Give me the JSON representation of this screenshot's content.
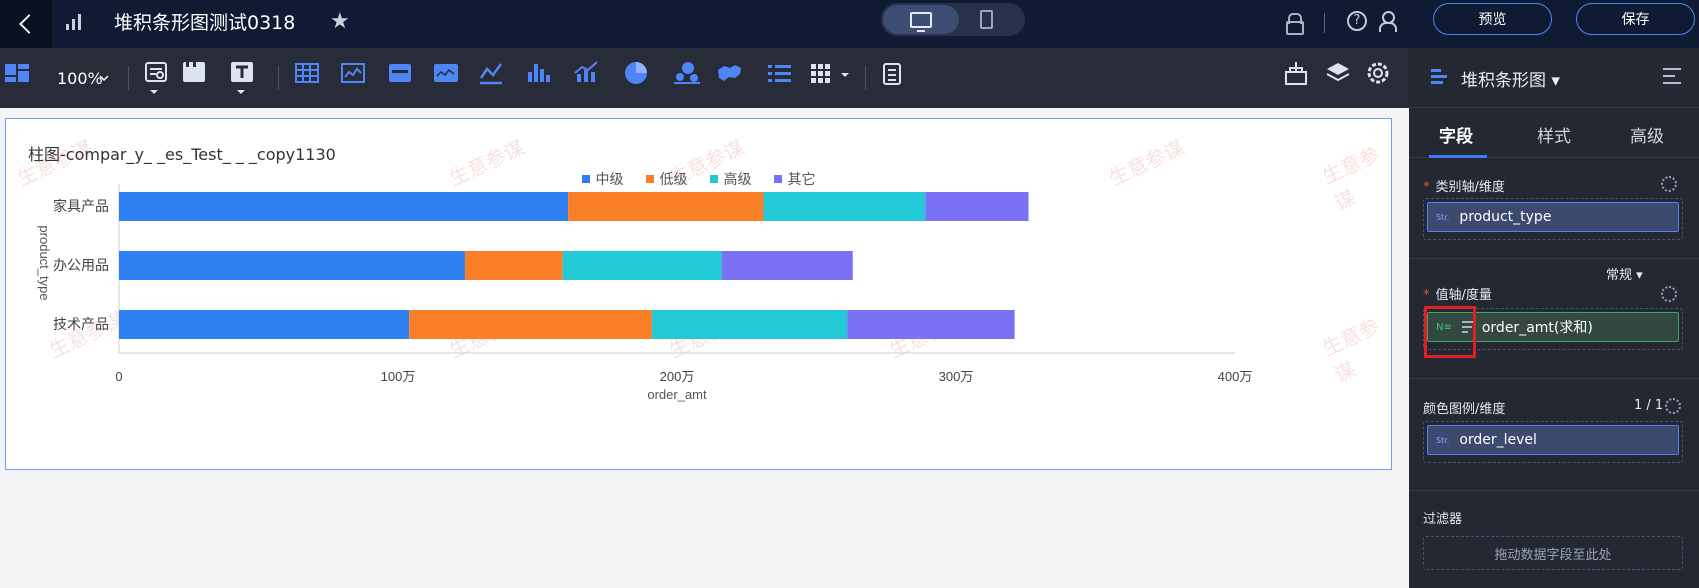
{
  "header": {
    "title": "堆积条形图测试0318",
    "preview_label": "预览",
    "save_label": "保存"
  },
  "toolbar": {
    "zoom": "100%",
    "icons": [
      "dashboard-icon",
      "zoom-icon",
      "query-icon",
      "container-icon",
      "text-icon",
      "table-icon",
      "line-card-icon",
      "card-icon",
      "kpi-icon",
      "line-chart-icon",
      "bar-chart-icon",
      "combo-chart-icon",
      "pie-chart-icon",
      "bubble-icon",
      "map-icon",
      "list-icon",
      "more-grid-icon",
      "report-icon",
      "brush-icon",
      "layers-icon",
      "settings-icon"
    ]
  },
  "chart": {
    "title": "柱图-compar_y_ _es_Test_ _ _copy1130",
    "watermark": "生意参谋"
  },
  "chart_data": {
    "type": "bar",
    "orientation": "horizontal",
    "stacked": true,
    "categories": [
      "家具产品",
      "办公用品",
      "技术产品"
    ],
    "series": [
      {
        "name": "中级",
        "color": "#2f80f3",
        "values": [
          161,
          124,
          104
        ]
      },
      {
        "name": "低级",
        "color": "#fb7f26",
        "values": [
          70,
          35,
          87
        ]
      },
      {
        "name": "高级",
        "color": "#23cad5",
        "values": [
          58,
          57,
          70
        ]
      },
      {
        "name": "其它",
        "color": "#7b71f5",
        "values": [
          37,
          47,
          60
        ]
      }
    ],
    "xlim": [
      0,
      400
    ],
    "x_ticks": [
      "0",
      "100万",
      "200万",
      "300万",
      "400万"
    ],
    "xlabel": "order_amt",
    "ylabel": "product_type",
    "legend": "top-center",
    "grid": false
  },
  "panel": {
    "chart_type": "堆积条形图",
    "tabs": [
      "字段",
      "样式",
      "高级"
    ],
    "category_axis_label": "类别轴/维度",
    "category_field": "product_type",
    "value_axis_label": "值轴/度量",
    "value_mode": "常规",
    "value_field": "order_amt(求和)",
    "color_legend_label": "颜色图例/维度",
    "color_count": "1 / 1",
    "color_field": "order_level",
    "filter_label": "过滤器",
    "filter_placeholder": "拖动数据字段至此处",
    "str_tag": "Str.",
    "num_tag": "N≡"
  }
}
